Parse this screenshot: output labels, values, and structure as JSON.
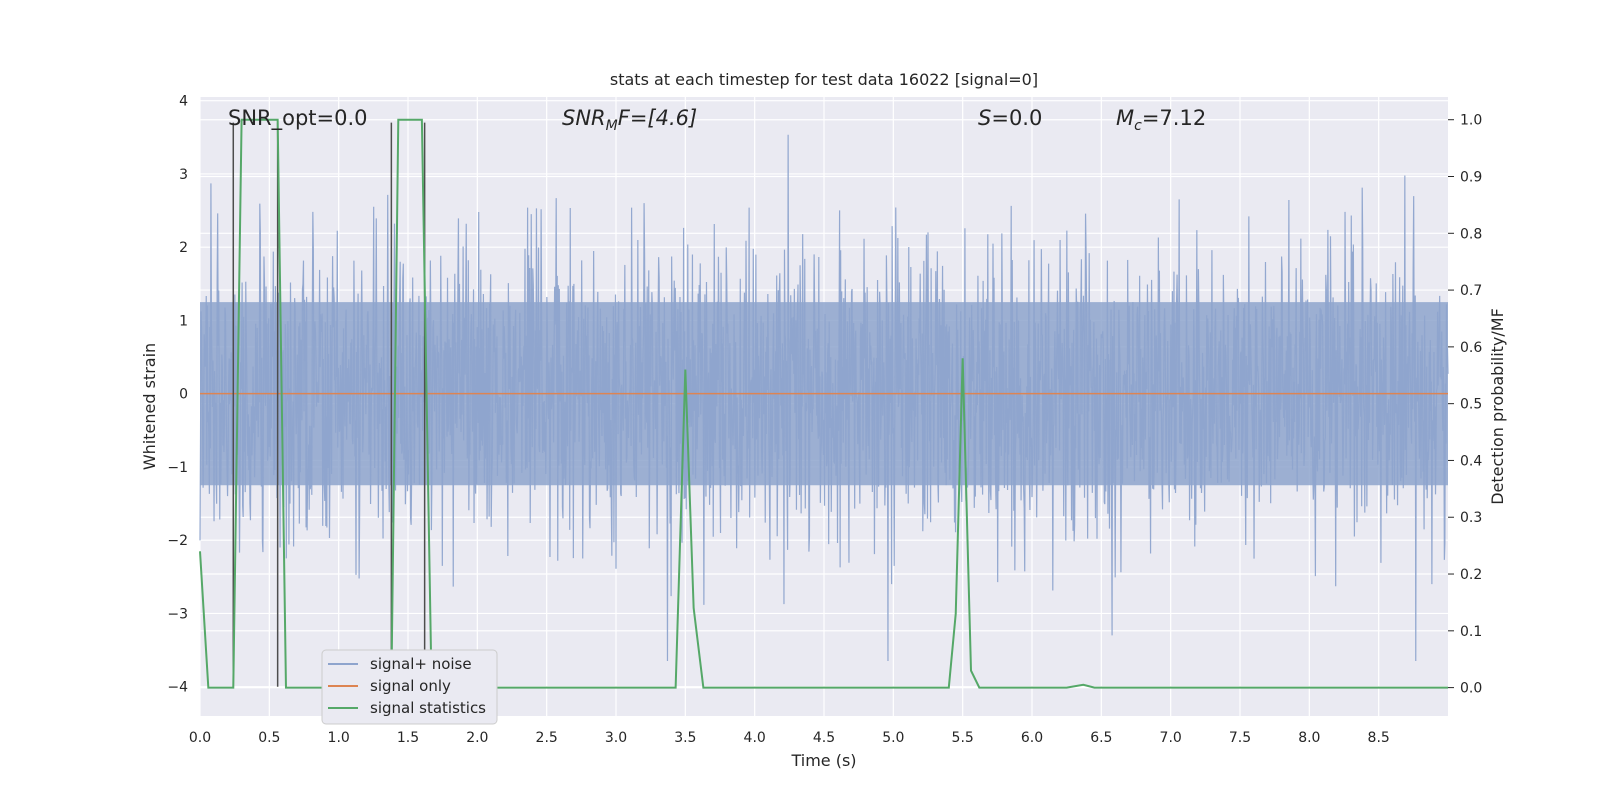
{
  "chart_data": {
    "type": "line",
    "title": "stats at each timestep for test data 16022 [signal=0]",
    "xlabel": "Time (s)",
    "ylabel_left": "Whitened strain",
    "ylabel_right": "Detection probability/MF",
    "xlim": [
      0,
      9.0
    ],
    "ylim_left": [
      -4.4,
      4.05
    ],
    "ylim_right": [
      -0.05,
      1.04
    ],
    "xticks": [
      "0.0",
      "0.5",
      "1.0",
      "1.5",
      "2.0",
      "2.5",
      "3.0",
      "3.5",
      "4.0",
      "4.5",
      "5.0",
      "5.5",
      "6.0",
      "6.5",
      "7.0",
      "7.5",
      "8.0",
      "8.5"
    ],
    "yticks_left": [
      "−4",
      "−3",
      "−2",
      "−1",
      "0",
      "1",
      "2",
      "3",
      "4"
    ],
    "yticks_right": [
      "0.0",
      "0.1",
      "0.2",
      "0.3",
      "0.4",
      "0.5",
      "0.6",
      "0.7",
      "0.8",
      "0.9",
      "1.0"
    ],
    "grid": true,
    "legend_position": "lower-left",
    "colors": {
      "background": "#eaeaf2",
      "noise": "#8ea4cd",
      "signal_only": "#dd8452",
      "statistics": "#55a868",
      "vlines": "#4d4d4d",
      "grid": "#ffffff"
    },
    "annotations": {
      "snr_opt": "SNR_opt=0.0",
      "snr_mf_base": "SNR",
      "snr_mf_sub": "M",
      "snr_mf_rest": "F=[4.6]",
      "s_base": "S",
      "s_rest": "=0.0",
      "mc_base": "M",
      "mc_sub": "c",
      "mc_rest": "=7.12"
    },
    "series": [
      {
        "name": "signal+ noise",
        "kind": "noise",
        "description_values": "dense whitened strain noise between approximately -3.6 and 3.7"
      },
      {
        "name": "signal only",
        "kind": "line",
        "x": [
          0,
          9.0
        ],
        "y": [
          0,
          0
        ]
      },
      {
        "name": "signal statistics",
        "kind": "line_right",
        "x": [
          0.0,
          0.06,
          0.24,
          0.3,
          0.56,
          0.62,
          0.8,
          1.38,
          1.43,
          1.6,
          1.67,
          2.0,
          3.43,
          3.5,
          3.56,
          3.63,
          4.5,
          5.4,
          5.45,
          5.5,
          5.56,
          5.62,
          6.25,
          6.37,
          6.45,
          9.0
        ],
        "y": [
          0.24,
          0.0,
          0.0,
          1.0,
          1.0,
          0.0,
          0.0,
          0.0,
          1.0,
          1.0,
          0.0,
          0.0,
          0.0,
          0.56,
          0.14,
          0.0,
          0.0,
          0.0,
          0.13,
          0.58,
          0.03,
          0.0,
          0.0,
          0.005,
          0.0,
          0.0
        ]
      }
    ],
    "vlines": [
      {
        "x": 0.24,
        "y_from": -4.0,
        "y_to": 3.7
      },
      {
        "x": 0.56,
        "y_from": -4.0,
        "y_to": 3.7
      },
      {
        "x": 1.38,
        "y_from": -4.0,
        "y_to": 3.7
      },
      {
        "x": 1.62,
        "y_from": -4.0,
        "y_to": 3.7
      }
    ]
  },
  "legend": {
    "items": [
      "signal+ noise",
      "signal only",
      "signal statistics"
    ]
  }
}
